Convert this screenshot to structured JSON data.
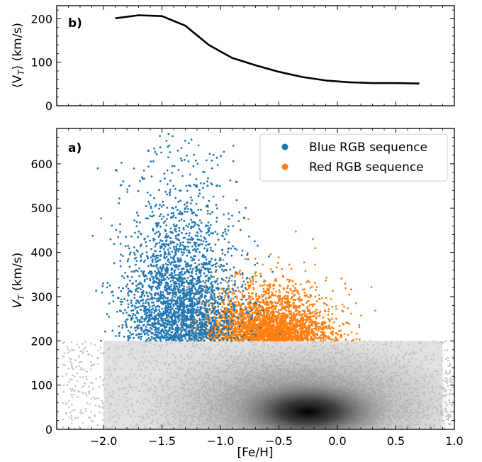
{
  "chart_data": [
    {
      "type": "line",
      "panel_label": "b)",
      "ylabel": "⟨V_T⟩ (km/s)",
      "ylabel_main": "⟨V",
      "ylabel_sub": "T",
      "ylabel_rest": "⟩ (km/s)",
      "xlim": [
        -2.4,
        1.0
      ],
      "ylim": [
        0,
        230
      ],
      "yticks": [
        0,
        100,
        200
      ],
      "x": [
        -1.9,
        -1.7,
        -1.5,
        -1.3,
        -1.1,
        -0.9,
        -0.7,
        -0.5,
        -0.3,
        -0.1,
        0.1,
        0.3,
        0.5,
        0.7
      ],
      "y": [
        201,
        208,
        206,
        184,
        140,
        110,
        93,
        78,
        66,
        58,
        54,
        52,
        52,
        51
      ],
      "color": "#000000"
    },
    {
      "type": "scatter",
      "panel_label": "a)",
      "xlabel": "[Fe/H]",
      "ylabel": "V_T (km/s)",
      "ylabel_main": "V",
      "ylabel_sub": "T",
      "ylabel_rest": " (km/s)",
      "xlim": [
        -2.4,
        1.0
      ],
      "ylim": [
        0,
        680
      ],
      "xticks": [
        -2.0,
        -1.5,
        -1.0,
        -0.5,
        0.0,
        0.5,
        1.0
      ],
      "xtick_labels": [
        "−2.0",
        "−1.5",
        "−1.0",
        "−0.5",
        "0.0",
        "0.5",
        "1.0"
      ],
      "yticks": [
        0,
        100,
        200,
        300,
        400,
        500,
        600
      ],
      "legend_position": "top-right",
      "series": [
        {
          "name": "Blue RGB sequence",
          "color": "#1f77b4",
          "feh_center": -1.35,
          "feh_spread": 0.24,
          "vt_min": 200,
          "vt_center": 330,
          "vt_spread": 100
        },
        {
          "name": "Red RGB sequence",
          "color": "#ff7f0e",
          "feh_center": -0.6,
          "feh_spread": 0.28,
          "vt_min": 200,
          "vt_center": 250,
          "vt_spread": 55
        },
        {
          "name": "",
          "color": "#c8c8c8",
          "density_peak_feh": -0.25,
          "density_peak_vt": 40,
          "vt_max": 200
        }
      ]
    }
  ]
}
